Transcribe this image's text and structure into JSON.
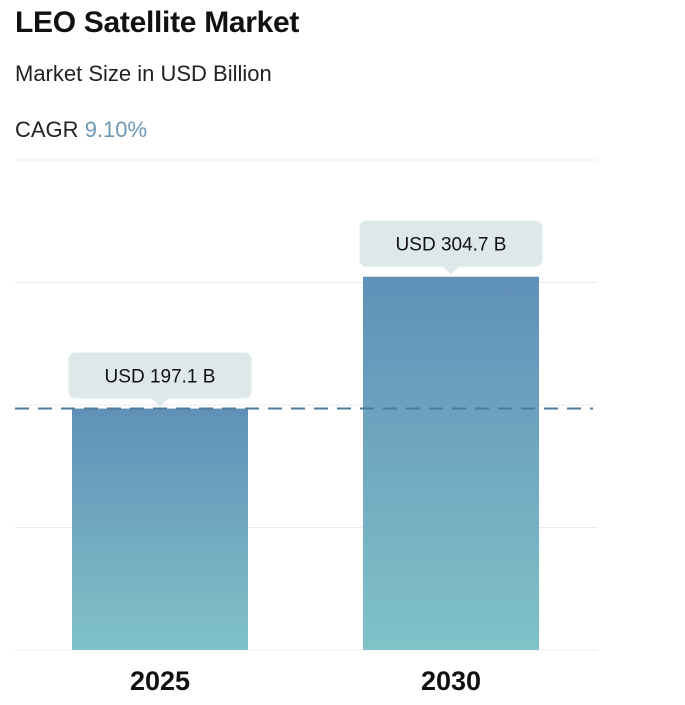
{
  "title": "LEO Satellite Market",
  "subtitle": "Market Size in USD Billion",
  "cagr": {
    "label": "CAGR",
    "value": "9.10%"
  },
  "colors": {
    "bar_top": "#6090b8",
    "bar_bottom": "#80c2c8",
    "callout_bg": "#dee8ea",
    "dashed_line": "#4f7b9b",
    "grid": "#ececec",
    "cagr_accent": "#6e98b3"
  },
  "chart_data": {
    "type": "bar",
    "title": "LEO Satellite Market",
    "subtitle": "Market Size in USD Billion",
    "categories": [
      "2025",
      "2030"
    ],
    "values": [
      197.1,
      304.7
    ],
    "data_labels": [
      "USD 197.1 B",
      "USD 304.7 B"
    ],
    "unit": "USD Billion",
    "reference_line": {
      "value": 197.1,
      "style": "dashed"
    },
    "ylim": [
      0,
      400
    ],
    "grid": true,
    "xlabel": "",
    "ylabel": ""
  }
}
